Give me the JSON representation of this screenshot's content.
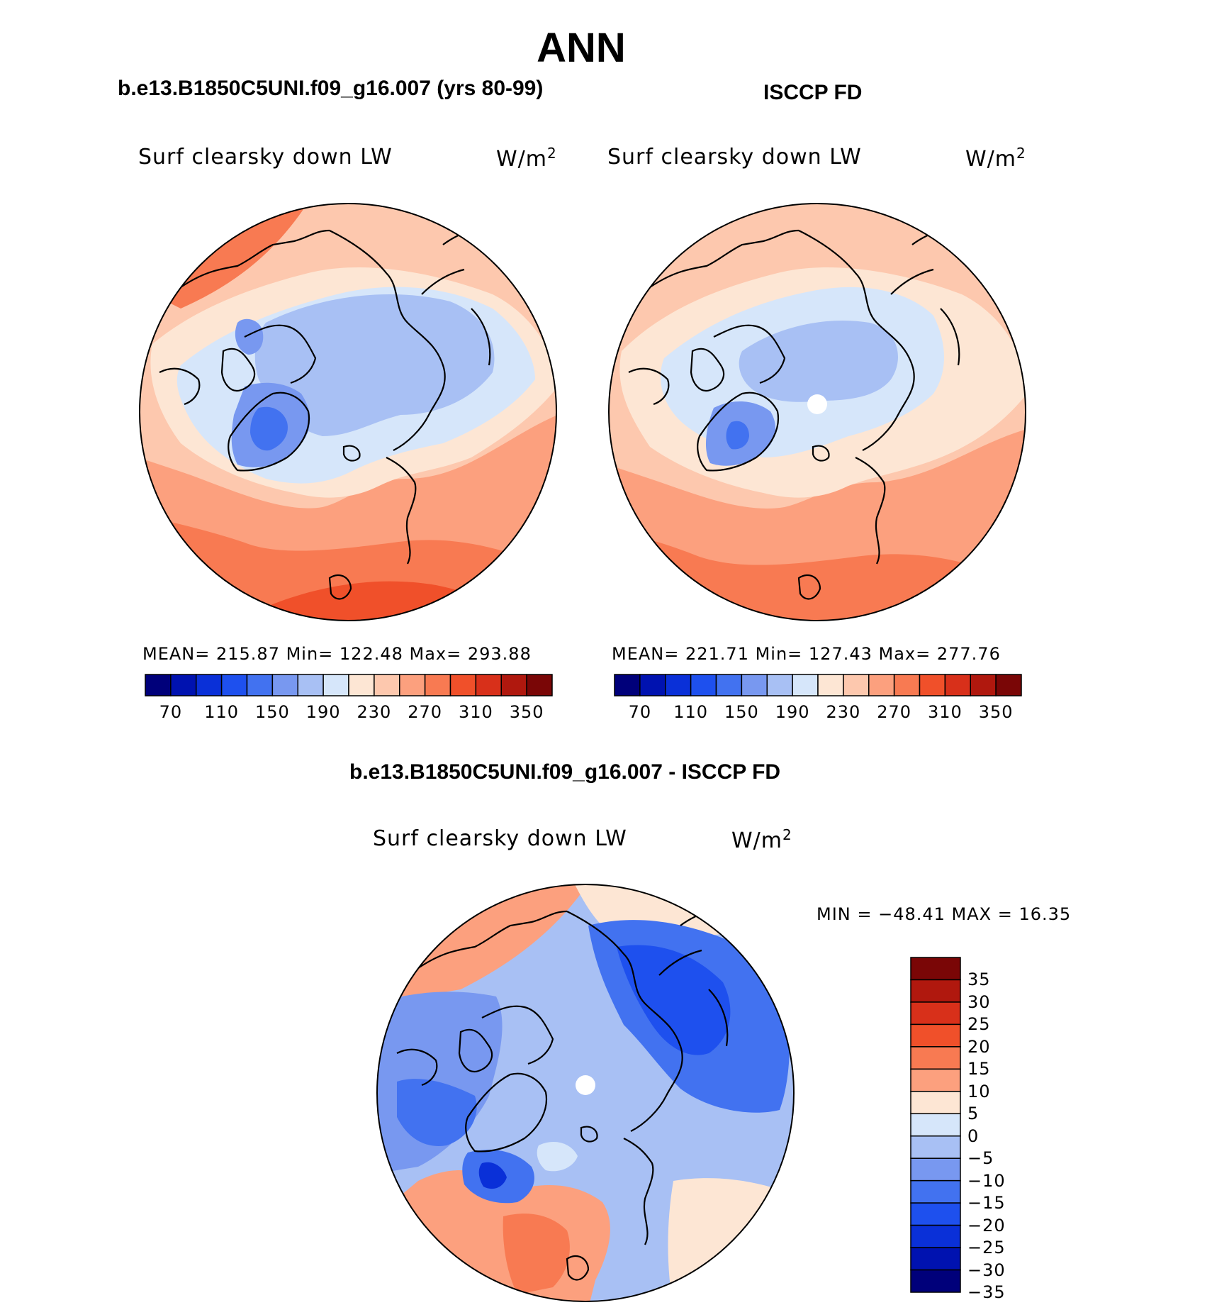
{
  "title": "ANN",
  "panels": [
    {
      "case_title": "b.e13.B1850C5UNI.f09_g16.007 (yrs 80-99)",
      "variable": "Surf clearsky down LW",
      "units": "W/m",
      "units_exp": "2",
      "stats": "MEAN= 215.87   Min= 122.48   Max= 293.88"
    },
    {
      "case_title": "ISCCP FD",
      "variable": "Surf clearsky down LW",
      "units": "W/m",
      "units_exp": "2",
      "stats": "MEAN= 221.71   Min= 127.43   Max= 277.76"
    }
  ],
  "shared_colorbar": {
    "colors": [
      "#00007a",
      "#0012b0",
      "#0a30d8",
      "#1e50ee",
      "#4272f0",
      "#7898f0",
      "#a8c0f4",
      "#d6e6fa",
      "#fde6d4",
      "#fdc8ae",
      "#fca07e",
      "#f87a52",
      "#f0502a",
      "#d8301a",
      "#b0180e",
      "#7a0606"
    ],
    "tick_labels": [
      "70",
      "110",
      "150",
      "190",
      "230",
      "270",
      "310",
      "350"
    ]
  },
  "difference": {
    "title": "b.e13.B1850C5UNI.f09_g16.007 - ISCCP FD",
    "variable": "Surf clearsky down LW",
    "units": "W/m",
    "units_exp": "2",
    "minmax": "MIN = −48.41 MAX =   16.35",
    "colors": [
      "#7a0606",
      "#b0180e",
      "#d8301a",
      "#f0502a",
      "#f87a52",
      "#fca07e",
      "#fde6d4",
      "#d6e6fa",
      "#a8c0f4",
      "#7898f0",
      "#4272f0",
      "#1e50ee",
      "#0a30d8",
      "#0012b0",
      "#00007a"
    ],
    "tick_labels": [
      "35",
      "30",
      "25",
      "20",
      "15",
      "10",
      "5",
      "0",
      "−5",
      "−10",
      "−15",
      "−20",
      "−25",
      "−30",
      "−35"
    ]
  }
}
